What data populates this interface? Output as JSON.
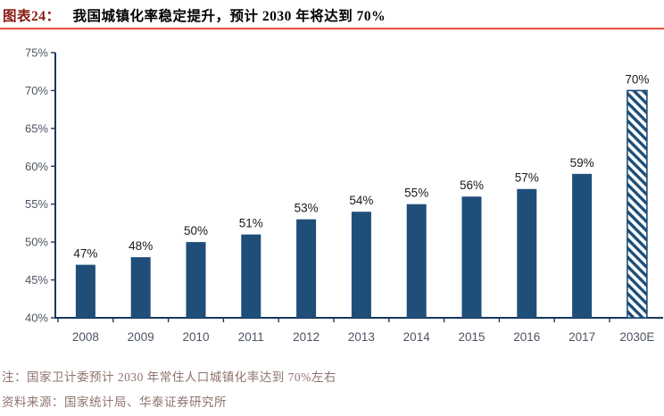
{
  "header": {
    "figure_label": "图表24：",
    "title": "我国城镇化率稳定提升，预计 2030 年将达到 70%"
  },
  "chart_data": {
    "type": "bar",
    "title": "我国城镇化率稳定提升，预计 2030 年将达到 70%",
    "categories": [
      "2008",
      "2009",
      "2010",
      "2011",
      "2012",
      "2013",
      "2014",
      "2015",
      "2016",
      "2017",
      "2030E"
    ],
    "values": [
      47,
      48,
      50,
      51,
      53,
      54,
      55,
      56,
      57,
      59,
      70
    ],
    "value_labels": [
      "47%",
      "48%",
      "50%",
      "51%",
      "53%",
      "54%",
      "55%",
      "56%",
      "57%",
      "59%",
      "70%"
    ],
    "ylim": [
      40,
      75
    ],
    "ytick_step": 5,
    "ytick_labels": [
      "40%",
      "45%",
      "50%",
      "55%",
      "60%",
      "65%",
      "70%",
      "75%"
    ],
    "xlabel": "",
    "ylabel": "",
    "grid": false,
    "legend": "none",
    "bar_color": "#1F4E79",
    "forecast_index": 10,
    "forecast_style": "diagonal-hatch"
  },
  "footer": {
    "note": "注：国家卫计委预计 2030 年常住人口城镇化率达到 70%左右",
    "source": "资料来源：国家统计局、华泰证券研究所"
  },
  "colors": {
    "accent_rule_red": "#E8503C",
    "figure_label_red": "#8C1A11",
    "bar_navy": "#1F4E79",
    "axis": "#17375E",
    "tick_label": "#4D5562",
    "value_label": "#1A1A1A",
    "note_text": "#8E736E"
  }
}
